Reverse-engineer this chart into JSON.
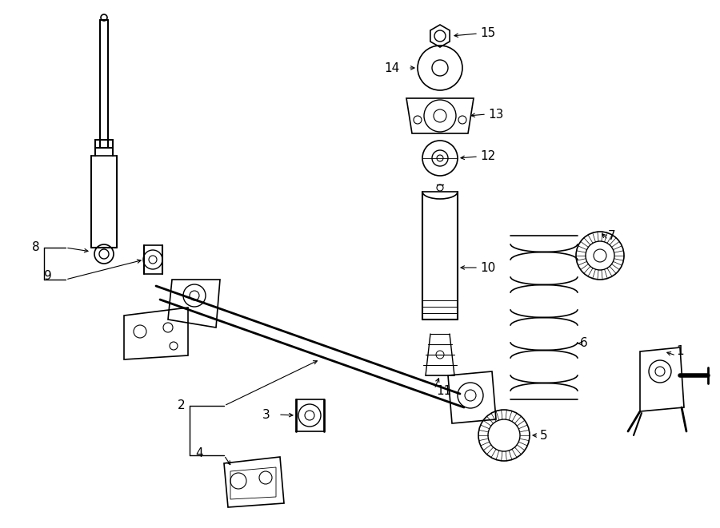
{
  "bg_color": "#ffffff",
  "line_color": "#000000",
  "lw": 1.0,
  "label_fontsize": 11,
  "fig_width": 9.0,
  "fig_height": 6.61,
  "dpi": 100
}
